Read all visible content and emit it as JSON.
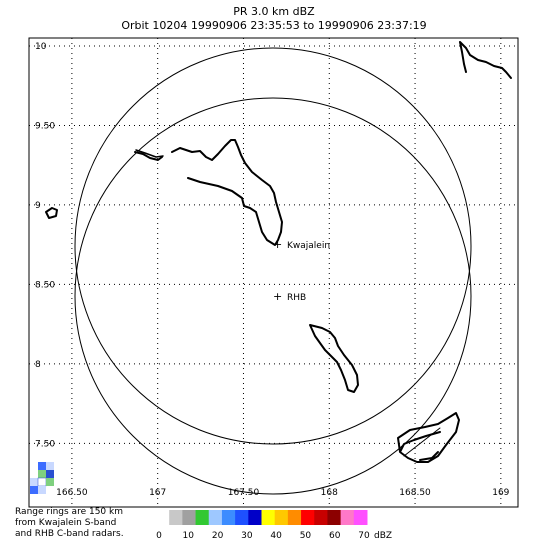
{
  "header": {
    "title": "PR  3.0 km dBZ",
    "orbit_line": "Orbit 10204 19990906 23:35:53 to 19990906 23:37:19"
  },
  "map": {
    "lat_ticks": [
      {
        "value": 10,
        "label": "10"
      },
      {
        "value": 9.5,
        "label": "9.50"
      },
      {
        "value": 9,
        "label": "9"
      },
      {
        "value": 8.5,
        "label": "8.50"
      },
      {
        "value": 8,
        "label": "8"
      },
      {
        "value": 7.5,
        "label": "7.50"
      }
    ],
    "lon_ticks": [
      {
        "value": 166.5,
        "label": "166.50"
      },
      {
        "value": 167,
        "label": "167"
      },
      {
        "value": 167.5,
        "label": "167.50"
      },
      {
        "value": 168,
        "label": "168"
      },
      {
        "value": 168.5,
        "label": "168.50"
      },
      {
        "value": 169,
        "label": "169"
      }
    ],
    "lon_range": [
      166.25,
      169.1
    ],
    "lat_range": [
      7.1,
      10.05
    ],
    "grid": "dotted",
    "range_rings_km": 150,
    "sites": [
      {
        "name": "Kwajalein",
        "symbol": "+",
        "lon": 167.73,
        "lat": 8.72
      },
      {
        "name": "RHB",
        "symbol": "+",
        "lon": 167.7,
        "lat": 8.37
      }
    ]
  },
  "footnote": {
    "line1": "Range rings are 150 km",
    "line2": "from Kwajalein S-band",
    "line3": "and RHB C-band radars."
  },
  "colorbar": {
    "unit": "dBZ",
    "ticks": [
      "0",
      "10",
      "20",
      "30",
      "40",
      "50",
      "60",
      "70"
    ],
    "colors": [
      "#ffffff",
      "#c8c8c8",
      "#a0a0a0",
      "#32c832",
      "#9ec8ff",
      "#3c8cff",
      "#1e50ff",
      "#0000c8",
      "#ffff00",
      "#ffc800",
      "#ff8c00",
      "#ff0000",
      "#c80000",
      "#8c0000",
      "#ff78c8",
      "#ff50ff"
    ]
  }
}
